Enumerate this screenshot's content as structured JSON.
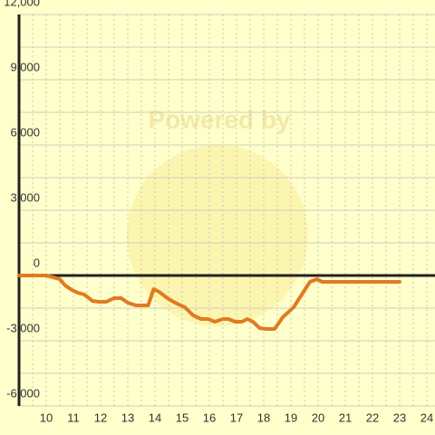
{
  "chart_data": {
    "type": "line",
    "watermark": "Powered by",
    "xlim": [
      9,
      24
    ],
    "xticks": [
      10,
      11,
      12,
      13,
      14,
      15,
      16,
      17,
      18,
      19,
      20,
      21,
      22,
      23,
      24
    ],
    "xminorticks": [
      9.5,
      10.5,
      11.5,
      12.5,
      13.5,
      14.5,
      15.5,
      16.5,
      17.5,
      18.5,
      19.5,
      20.5,
      21.5,
      22.5,
      23.5
    ],
    "ylim": [
      -6000,
      12000
    ],
    "yticks": [
      {
        "value": -6000,
        "label": "-6,000"
      },
      {
        "value": -3000,
        "label": "-3,000"
      },
      0,
      {
        "value": 3000,
        "label": "3,000"
      },
      {
        "value": 6000,
        "label": "6,000"
      },
      {
        "value": 9000,
        "label": "9,000"
      },
      {
        "value": 12000,
        "label": "12,000"
      }
    ],
    "yminorticks": [
      -4500,
      -1500,
      1500,
      4500,
      7500,
      10500
    ],
    "grid": true,
    "series": [
      {
        "color": "#e07b20",
        "x": [
          9.0,
          10.0,
          10.25,
          10.5,
          10.7,
          10.95,
          11.15,
          11.4,
          11.7,
          11.95,
          12.2,
          12.5,
          12.75,
          13.0,
          13.3,
          13.55,
          13.75,
          13.95,
          14.15,
          14.5,
          14.8,
          15.1,
          15.4,
          15.7,
          15.95,
          16.2,
          16.5,
          16.7,
          16.95,
          17.2,
          17.4,
          17.6,
          17.85,
          18.1,
          18.4,
          18.7,
          19.1,
          19.4,
          19.7,
          19.95,
          20.15,
          20.6,
          23.0
        ],
        "values": [
          0,
          0,
          -80,
          -170,
          -460,
          -670,
          -790,
          -875,
          -1170,
          -1210,
          -1210,
          -1040,
          -1040,
          -1250,
          -1375,
          -1375,
          -1375,
          -625,
          -750,
          -1080,
          -1290,
          -1460,
          -1830,
          -2000,
          -2000,
          -2125,
          -2000,
          -2000,
          -2125,
          -2125,
          -2000,
          -2125,
          -2420,
          -2460,
          -2460,
          -1920,
          -1460,
          -875,
          -290,
          -170,
          -290,
          -290,
          -290
        ]
      }
    ]
  }
}
